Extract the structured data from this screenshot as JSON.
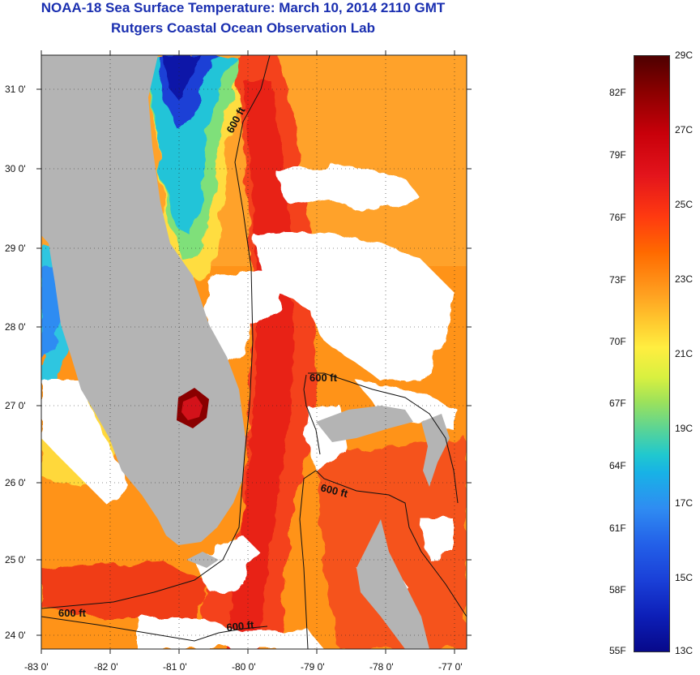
{
  "title_line1": "NOAA-18 Sea Surface Temperature:  March 10, 2014 2110 GMT",
  "title_line2": "Rutgers Coastal Ocean Observation Lab",
  "lat_labels": [
    "31 0'",
    "30 0'",
    "29 0'",
    "28 0'",
    "27 0'",
    "26 0'",
    "25 0'",
    "24 0'"
  ],
  "lon_labels": [
    "-83 0'",
    "-82 0'",
    "-81 0'",
    "-80 0'",
    "-79 0'",
    "-78 0'",
    "-77 0'"
  ],
  "contour_labels": [
    "600 ft",
    "600 ft",
    "600 ft",
    "600 ft",
    "600 ft"
  ],
  "colorbar": {
    "celsius": [
      "29C",
      "27C",
      "25C",
      "23C",
      "21C",
      "19C",
      "17C",
      "15C",
      "13C"
    ],
    "fahrenheit": [
      "82F",
      "79F",
      "76F",
      "73F",
      "70F",
      "67F",
      "64F",
      "61F",
      "58F",
      "55F"
    ]
  },
  "colors": {
    "title": "#1a2fb0",
    "land": "#b4b4b4",
    "cloud": "#ffffff",
    "warm": "#ff3a10",
    "cold": "#0d1fb8"
  }
}
